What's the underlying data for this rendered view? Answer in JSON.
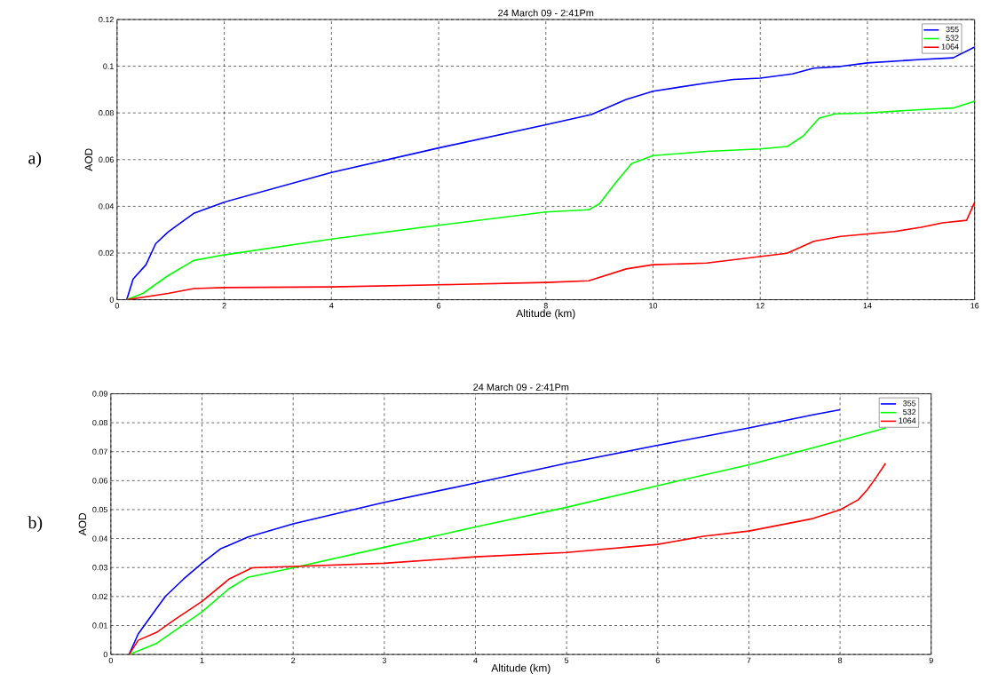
{
  "chart_data": [
    {
      "type": "line",
      "title": "24 March 09 - 2:41Pm",
      "xlabel": "Altitude (km)",
      "ylabel": "AOD",
      "annotations": [
        "a)"
      ],
      "xlim": [
        0,
        16
      ],
      "ylim": [
        0,
        0.12
      ],
      "xticks": [
        0,
        2,
        4,
        6,
        8,
        10,
        12,
        14,
        16
      ],
      "yticks": [
        0,
        0.02,
        0.04,
        0.06,
        0.08,
        0.1,
        0.12
      ],
      "grid": true,
      "legend": "top right",
      "series": [
        {
          "name": "355",
          "color": "#0000ff",
          "x": [
            0.18,
            0.3,
            0.54,
            0.72,
            0.95,
            1.43,
            2,
            4,
            6,
            8,
            8.85,
            9.5,
            10,
            11,
            11.5,
            12,
            12.6,
            13,
            13.5,
            14,
            15,
            15.6,
            16
          ],
          "values": [
            0,
            0.0089,
            0.015,
            0.024,
            0.029,
            0.037,
            0.0418,
            0.0545,
            0.065,
            0.0749,
            0.0793,
            0.0858,
            0.0893,
            0.0928,
            0.0943,
            0.0949,
            0.0967,
            0.0992,
            0.0999,
            0.1014,
            0.1029,
            0.1036,
            0.1082
          ]
        },
        {
          "name": "532",
          "color": "#00ff00",
          "x": [
            0.18,
            0.48,
            0.95,
            1.43,
            2,
            4,
            6,
            8,
            8.8,
            9,
            9.3,
            9.6,
            10,
            11,
            12,
            12.5,
            12.8,
            13.1,
            13.4,
            14,
            15,
            15.6,
            16
          ],
          "values": [
            0,
            0.0027,
            0.0103,
            0.0168,
            0.0192,
            0.026,
            0.0319,
            0.0376,
            0.0385,
            0.0411,
            0.05,
            0.0583,
            0.0617,
            0.0635,
            0.0646,
            0.0656,
            0.0701,
            0.0778,
            0.0796,
            0.08,
            0.0814,
            0.0821,
            0.085
          ]
        },
        {
          "name": "1064",
          "color": "#ff0000",
          "x": [
            0.18,
            0.95,
            1.43,
            2,
            4,
            6,
            8,
            8.8,
            9.5,
            10,
            11,
            12,
            12.5,
            13,
            13.5,
            14,
            14.5,
            15,
            15.4,
            15.85,
            16
          ],
          "values": [
            0,
            0.0027,
            0.0048,
            0.0052,
            0.0055,
            0.0064,
            0.0074,
            0.0081,
            0.0132,
            0.015,
            0.0157,
            0.0185,
            0.0199,
            0.025,
            0.0271,
            0.0282,
            0.0292,
            0.031,
            0.0329,
            0.034,
            0.0417
          ]
        }
      ]
    },
    {
      "type": "line",
      "title": "24 March 09 - 2:41Pm",
      "xlabel": "Altitude (km)",
      "ylabel": "AOD",
      "annotations": [
        "b)"
      ],
      "xlim": [
        0,
        9
      ],
      "ylim": [
        0,
        0.09
      ],
      "xticks": [
        0,
        1,
        2,
        3,
        4,
        5,
        6,
        7,
        8,
        9
      ],
      "yticks": [
        0,
        0.01,
        0.02,
        0.03,
        0.04,
        0.05,
        0.06,
        0.07,
        0.08,
        0.09
      ],
      "grid": true,
      "legend": "top right",
      "series": [
        {
          "name": "355",
          "color": "#0000ff",
          "x": [
            0.2,
            0.3,
            0.5,
            0.6,
            0.8,
            1,
            1.2,
            1.5,
            2,
            3,
            4,
            5,
            6,
            7,
            7.7,
            8
          ],
          "values": [
            0,
            0.0071,
            0.0158,
            0.0201,
            0.0261,
            0.0315,
            0.0364,
            0.0405,
            0.0451,
            0.0525,
            0.0592,
            0.066,
            0.0722,
            0.0782,
            0.0827,
            0.0845
          ]
        },
        {
          "name": "532",
          "color": "#00ff00",
          "x": [
            0.2,
            0.5,
            1,
            1.3,
            1.5,
            2,
            3,
            4,
            5,
            6,
            7,
            8,
            8.5
          ],
          "values": [
            0,
            0.0038,
            0.0147,
            0.0228,
            0.0266,
            0.0299,
            0.037,
            0.044,
            0.0508,
            0.0583,
            0.0655,
            0.0738,
            0.0782
          ]
        },
        {
          "name": "1064",
          "color": "#ff0000",
          "x": [
            0.2,
            0.3,
            0.5,
            0.7,
            1,
            1.3,
            1.55,
            2,
            3,
            4,
            5,
            6,
            6.5,
            7,
            7.7,
            8,
            8.2,
            8.3,
            8.4,
            8.5
          ],
          "values": [
            0,
            0.0049,
            0.0076,
            0.012,
            0.0183,
            0.0261,
            0.0299,
            0.0304,
            0.0315,
            0.0337,
            0.0352,
            0.038,
            0.0408,
            0.0426,
            0.0469,
            0.0499,
            0.0534,
            0.0569,
            0.0613,
            0.066
          ]
        }
      ]
    }
  ]
}
